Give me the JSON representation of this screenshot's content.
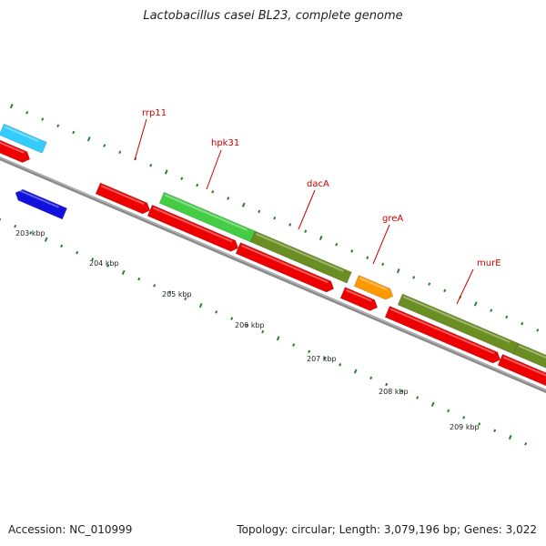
{
  "title": "Lactobacillus casei BL23, complete genome",
  "accession": "Accession: NC_010999",
  "info": "Topology: circular; Length: 3,079,196 bp; Genes: 3,022",
  "colors": {
    "backbone": "#8a8a8a",
    "cds": "#ee0000",
    "cog_cyan": "#33ccff",
    "cog_blue": "#1111dd",
    "cog_lightgreen": "#44cc44",
    "cog_olive": "#6b8e23",
    "cog_orange": "#ff9900",
    "ticks": "#2e7d32",
    "label": "#cc0000"
  },
  "scale_labels": [
    "203 kbp",
    "204 kbp",
    "205 kbp",
    "206 kbp",
    "207 kbp",
    "208 kbp",
    "209 kbp"
  ],
  "gene_labels": [
    "rrp11",
    "hpk31",
    "dacA",
    "greA",
    "murE"
  ]
}
